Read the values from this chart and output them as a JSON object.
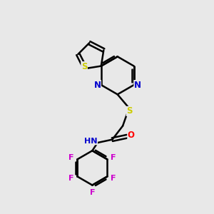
{
  "bg_color": "#e8e8e8",
  "bond_color": "#000000",
  "bond_width": 1.8,
  "atom_colors": {
    "S": "#cccc00",
    "N": "#0000cc",
    "O": "#ff0000",
    "F": "#cc00cc",
    "C": "#000000"
  },
  "font_size": 8.5,
  "figsize": [
    3.0,
    3.0
  ],
  "dpi": 100
}
